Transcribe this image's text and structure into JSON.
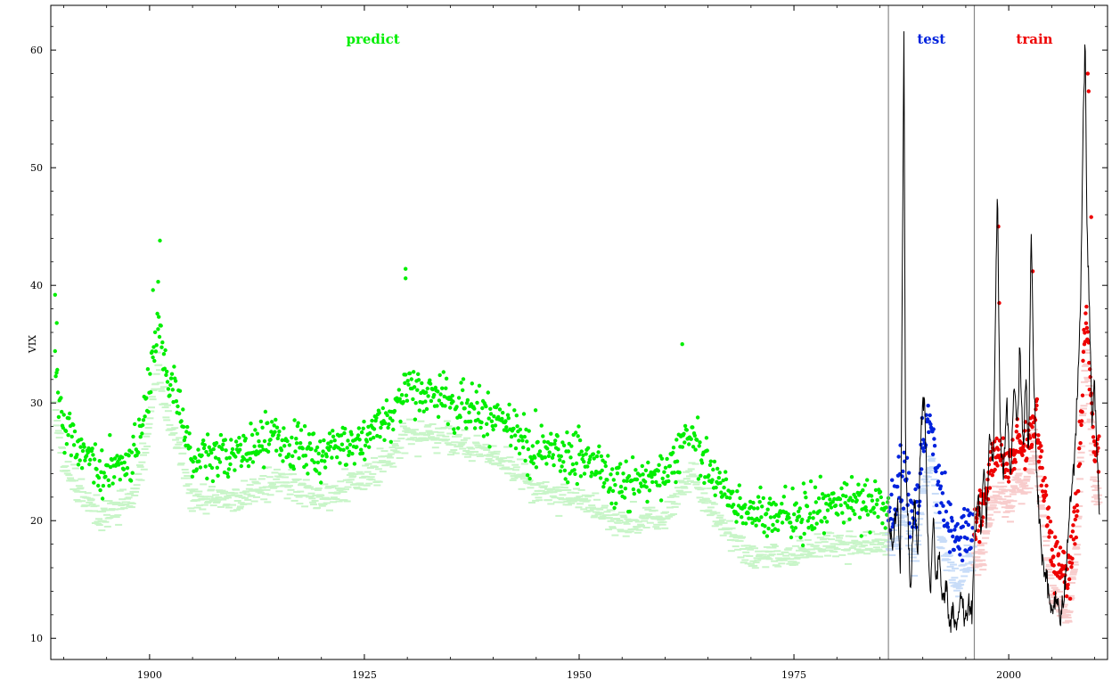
{
  "chart_data": {
    "type": "scatter",
    "title": "",
    "xlabel": "",
    "ylabel": "VIX",
    "xlim": [
      1888.5,
      2011.5
    ],
    "ylim": [
      8.2,
      63.8
    ],
    "x_ticks": [
      1900,
      1925,
      1950,
      1975,
      2000
    ],
    "y_ticks": [
      10,
      20,
      30,
      40,
      50,
      60
    ],
    "grid": false,
    "region_boundaries": [
      1986,
      1996
    ],
    "regions": [
      {
        "name": "predict",
        "label": "predict",
        "color": "#00ee00",
        "x_center": 1926
      },
      {
        "name": "test",
        "label": "test",
        "color": "#0022dd",
        "x_center": 1991
      },
      {
        "name": "train",
        "label": "train",
        "color": "#ee0000",
        "x_center": 2003
      }
    ],
    "predict_anchors": {
      "x": [
        1889,
        1890,
        1892,
        1894,
        1896,
        1898,
        1899,
        1900,
        1901,
        1902,
        1903,
        1905,
        1910,
        1915,
        1920,
        1925,
        1928,
        1930,
        1935,
        1940,
        1945,
        1950,
        1955,
        1960,
        1963,
        1966,
        1970,
        1975,
        1980,
        1986
      ],
      "y": [
        33,
        28,
        26,
        24,
        24.5,
        25.5,
        27.5,
        32,
        37,
        32,
        31,
        25,
        25.5,
        27,
        25.5,
        27,
        29,
        31,
        30.5,
        29,
        26,
        25.5,
        23,
        24,
        27.5,
        23.5,
        20.5,
        20.5,
        21.5,
        21.5
      ]
    },
    "test_anchors": {
      "x": [
        1986,
        1987,
        1988,
        1989,
        1990,
        1991,
        1992,
        1993,
        1994,
        1995,
        1996
      ],
      "y": [
        21.5,
        22,
        24,
        20,
        26,
        29,
        22,
        20,
        18,
        19.5,
        20.5
      ]
    },
    "train_anchors": {
      "x": [
        1996,
        1997,
        1998,
        1999,
        2000,
        2001,
        2002,
        2003,
        2004,
        2005,
        2006,
        2007,
        2008,
        2009,
        2010
      ],
      "y": [
        19.5,
        21,
        25,
        26,
        24.5,
        27,
        26,
        30,
        24,
        17.5,
        16,
        15,
        22,
        38,
        26
      ]
    },
    "actual_vix": {
      "x": [
        1986,
        1986.5,
        1987,
        1987.4,
        1987.8,
        1988,
        1988.3,
        1988.6,
        1989,
        1989.4,
        1989.8,
        1990.2,
        1990.6,
        1990.9,
        1991.2,
        1991.5,
        1991.9,
        1992.3,
        1992.7,
        1993.1,
        1993.5,
        1993.9,
        1994.2,
        1994.5,
        1994.9,
        1995.3,
        1995.7,
        1996,
        1996.4,
        1996.8,
        1997.1,
        1997.4,
        1997.8,
        1998.2,
        1998.5,
        1998.7,
        1999,
        1999.4,
        1999.8,
        2000.2,
        2000.6,
        2001,
        2001.3,
        2001.7,
        2002,
        2002.3,
        2002.6,
        2002.9,
        2003.2,
        2003.6,
        2004,
        2004.4,
        2004.8,
        2005.2,
        2005.6,
        2006,
        2006.4,
        2006.8,
        2007.2,
        2007.6,
        2008,
        2008.4,
        2008.7,
        2008.9,
        2009.1,
        2009.4,
        2009.7,
        2010,
        2010.3,
        2010.6
      ],
      "y": [
        20,
        18,
        22,
        16,
        61.5,
        25,
        19,
        14,
        22,
        17,
        28,
        31,
        18,
        13,
        21,
        15,
        17,
        13,
        15,
        11,
        13,
        10.5,
        12,
        14,
        11,
        13,
        12,
        18,
        22,
        19,
        25,
        20,
        28,
        24,
        40,
        48,
        27,
        24,
        30,
        23,
        32,
        28,
        35,
        26,
        33,
        25,
        45,
        33,
        25,
        20,
        16,
        15,
        13,
        12,
        14,
        11.5,
        13,
        17,
        22,
        25,
        31,
        40,
        55,
        61.5,
        45,
        38,
        28,
        32,
        25,
        20
      ]
    }
  }
}
